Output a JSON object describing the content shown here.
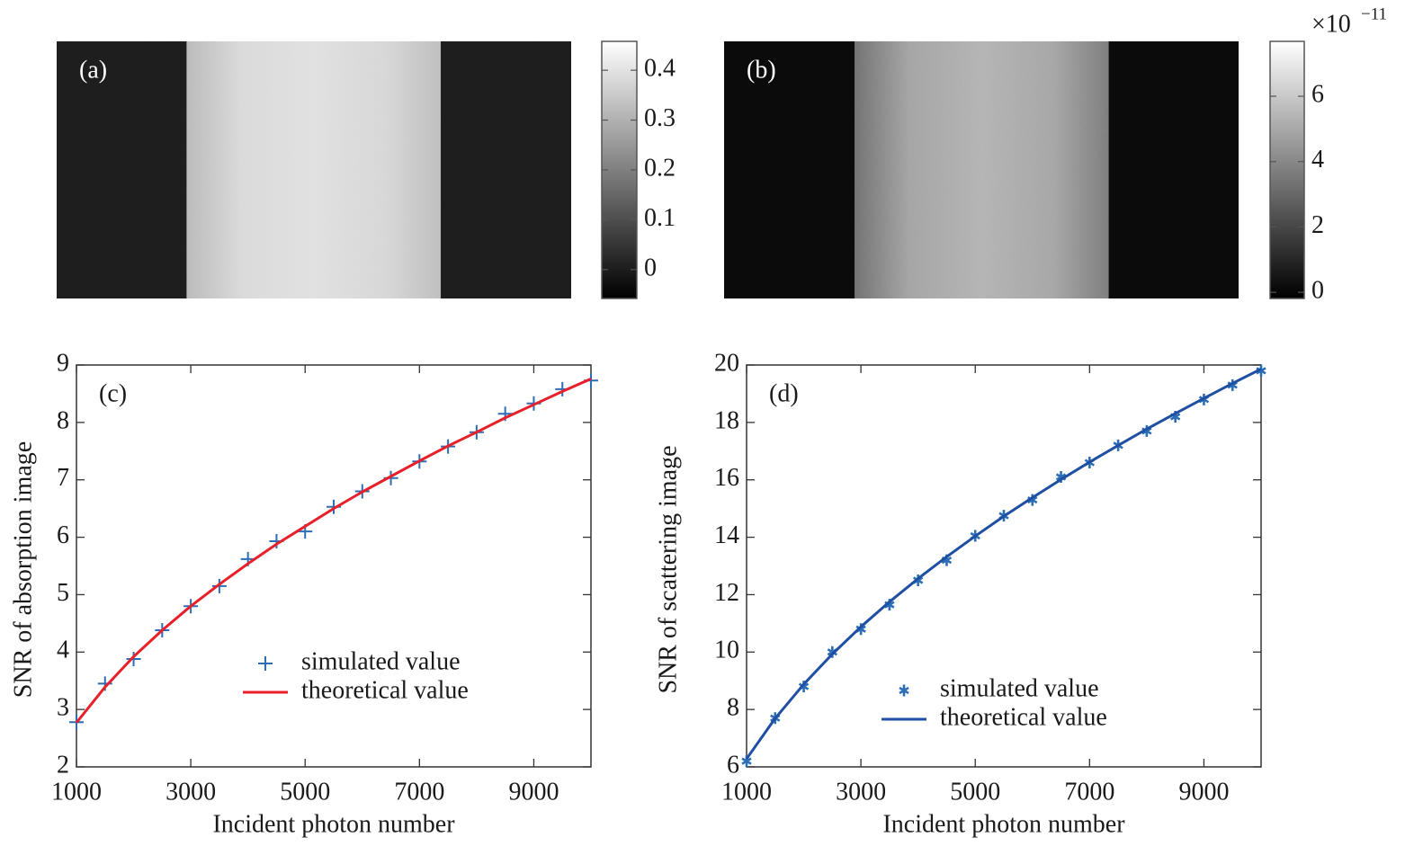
{
  "chart_data": [
    {
      "type": "image",
      "label": "(a)",
      "colormap": "gray",
      "colorbar": {
        "clim": [
          -0.058,
          0.458
        ],
        "cticks": [
          0,
          0.1,
          0.2,
          0.3,
          0.4
        ]
      }
    },
    {
      "type": "image",
      "label": "(b)",
      "colormap": "gray",
      "colorbar": {
        "clim": [
          -0.19,
          7.68
        ],
        "cticks": [
          0,
          2,
          4,
          6
        ],
        "exponent": {
          "base": "×10",
          "power": "−11"
        }
      }
    },
    {
      "type": "line",
      "label": "(c)",
      "xlabel": "Incident photon number",
      "ylabel": "SNR of absorption image",
      "x": [
        1000,
        1500,
        2000,
        2500,
        3000,
        3500,
        4000,
        4500,
        5000,
        5500,
        6000,
        6500,
        7000,
        7500,
        8000,
        8500,
        9000,
        9500,
        10000
      ],
      "xlim": [
        1000,
        10000
      ],
      "xticks": [
        1000,
        3000,
        5000,
        7000,
        9000
      ],
      "ylim": [
        2,
        9
      ],
      "yticks": [
        2,
        3,
        4,
        5,
        6,
        7,
        8,
        9
      ],
      "legend": "lower right",
      "series": [
        {
          "name": "simulated value",
          "type": "scatter",
          "marker": "+",
          "color": "#2c6eb5",
          "values": [
            2.78,
            3.45,
            3.88,
            4.38,
            4.8,
            5.15,
            5.62,
            5.93,
            6.1,
            6.53,
            6.8,
            7.03,
            7.32,
            7.58,
            7.83,
            8.15,
            8.33,
            8.58,
            8.73
          ]
        },
        {
          "name": "theoretical value",
          "type": "line",
          "color": "#e8202a",
          "values": [
            2.77,
            3.39,
            3.92,
            4.38,
            4.8,
            5.18,
            5.54,
            5.88,
            6.19,
            6.5,
            6.79,
            7.06,
            7.33,
            7.59,
            7.83,
            8.08,
            8.31,
            8.54,
            8.76
          ]
        }
      ]
    },
    {
      "type": "line",
      "label": "(d)",
      "xlabel": "Incident photon number",
      "ylabel": "SNR of scattering image",
      "x": [
        1000,
        1500,
        2000,
        2500,
        3000,
        3500,
        4000,
        4500,
        5000,
        5500,
        6000,
        6500,
        7000,
        7500,
        8000,
        8500,
        9000,
        9500,
        10000
      ],
      "xlim": [
        1000,
        10000
      ],
      "xticks": [
        1000,
        3000,
        5000,
        7000,
        9000
      ],
      "ylim": [
        6,
        20
      ],
      "yticks": [
        6,
        8,
        10,
        12,
        14,
        16,
        18,
        20
      ],
      "legend": "lower right",
      "series": [
        {
          "name": "simulated value",
          "type": "scatter",
          "marker": "*",
          "color": "#2c6eb5",
          "values": [
            6.2,
            7.7,
            8.8,
            10.0,
            10.8,
            11.65,
            12.5,
            13.2,
            14.05,
            14.75,
            15.3,
            16.1,
            16.6,
            17.2,
            17.7,
            18.2,
            18.8,
            19.3,
            19.8
          ]
        },
        {
          "name": "theoretical value",
          "type": "line",
          "color": "#1f4fa3",
          "values": [
            6.28,
            7.69,
            8.88,
            9.93,
            10.88,
            11.75,
            12.56,
            13.32,
            14.04,
            14.73,
            15.38,
            16.01,
            16.62,
            17.2,
            17.77,
            18.31,
            18.84,
            19.36,
            19.86
          ]
        }
      ]
    }
  ]
}
